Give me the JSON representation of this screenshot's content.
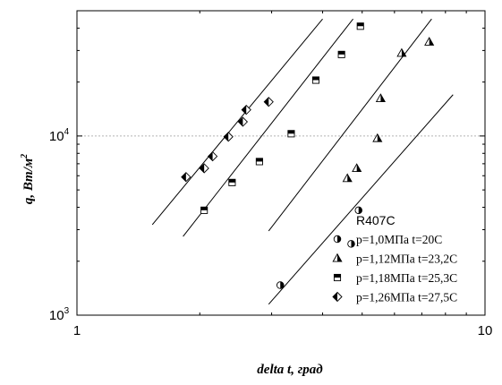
{
  "chart_data": {
    "type": "scatter",
    "title": "",
    "xlabel": "delta t, град",
    "ylabel": "q, Вт/м",
    "ylabel_sup": "2",
    "xscale": "log",
    "yscale": "log",
    "xlim": [
      1,
      10
    ],
    "ylim": [
      1000,
      50000
    ],
    "grid": "horizontal dotted at 10^4",
    "x_ticks": [
      {
        "value": 1,
        "label": "1"
      },
      {
        "value": 10,
        "label": "10"
      }
    ],
    "y_ticks": [
      {
        "value": 1000,
        "base": "10",
        "exp": "3"
      },
      {
        "value": 10000,
        "base": "10",
        "exp": "4"
      }
    ],
    "legend": {
      "title": "R407C",
      "position": "bottom-right"
    },
    "series": [
      {
        "name": "p=1,0МПа t=20С",
        "marker": "half-circle",
        "points": [
          [
            3.15,
            1470
          ],
          [
            4.7,
            2500
          ],
          [
            4.9,
            3850
          ]
        ]
      },
      {
        "name": "p=1,12МПа t=23,2С",
        "marker": "half-triangle",
        "points": [
          [
            4.6,
            5800
          ],
          [
            4.85,
            6600
          ],
          [
            5.45,
            9700
          ],
          [
            5.55,
            16200
          ],
          [
            6.25,
            29000
          ],
          [
            7.3,
            33500
          ]
        ]
      },
      {
        "name": "p=1,18МПа t=25,3С",
        "marker": "half-square",
        "points": [
          [
            2.05,
            3850
          ],
          [
            2.4,
            5500
          ],
          [
            2.8,
            7200
          ],
          [
            3.35,
            10300
          ],
          [
            3.85,
            20500
          ],
          [
            4.45,
            28500
          ],
          [
            4.95,
            41000
          ]
        ]
      },
      {
        "name": "p=1,26МПа t=27,5С",
        "marker": "half-diamond",
        "points": [
          [
            1.85,
            5900
          ],
          [
            2.05,
            6600
          ],
          [
            2.15,
            7700
          ],
          [
            2.35,
            9900
          ],
          [
            2.55,
            12000
          ],
          [
            2.6,
            14000
          ],
          [
            2.95,
            15500
          ]
        ]
      }
    ],
    "fit_lines": [
      {
        "points": [
          [
            1.53,
            3200
          ],
          [
            4.0,
            45000
          ]
        ]
      },
      {
        "points": [
          [
            1.82,
            2750
          ],
          [
            4.75,
            45000
          ]
        ]
      },
      {
        "points": [
          [
            2.95,
            2950
          ],
          [
            7.4,
            45000
          ]
        ]
      },
      {
        "points": [
          [
            2.95,
            1150
          ],
          [
            8.35,
            17000
          ]
        ]
      }
    ]
  }
}
